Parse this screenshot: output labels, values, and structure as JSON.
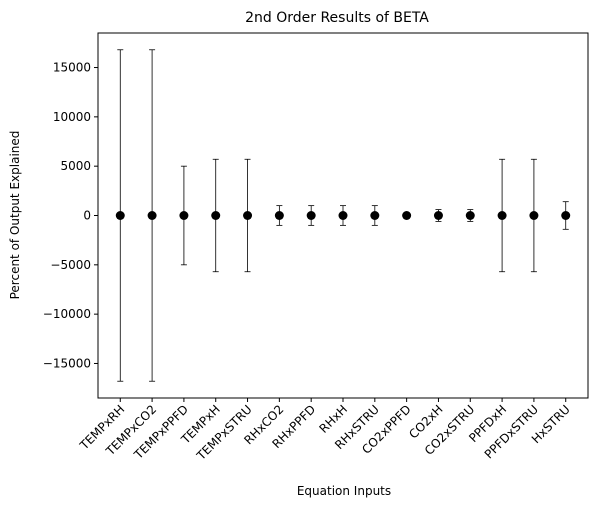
{
  "chart_data": {
    "type": "scatter",
    "title": "2nd Order Results of BETA",
    "xlabel": "Equation Inputs",
    "ylabel": "Percent of Output Explained",
    "ylim": [
      -18500,
      18500
    ],
    "yticks": [
      -15000,
      -10000,
      -5000,
      0,
      5000,
      10000,
      15000
    ],
    "grid": false,
    "categories": [
      "TEMPxRH",
      "TEMPxCO2",
      "TEMPxPPFD",
      "TEMPxH",
      "TEMPxSTRU",
      "RHxCO2",
      "RHxPPFD",
      "RHxH",
      "RHxSTRU",
      "CO2xPPFD",
      "CO2xH",
      "CO2xSTRU",
      "PPFDxH",
      "PPFDxSTRU",
      "HxSTRU"
    ],
    "values": [
      0,
      0,
      0,
      0,
      0,
      0,
      0,
      0,
      0,
      0,
      0,
      0,
      0,
      0,
      0
    ],
    "errors": [
      16800,
      16800,
      5000,
      5700,
      5700,
      1000,
      1000,
      1000,
      1000,
      250,
      600,
      600,
      5700,
      5700,
      1400
    ],
    "marker_color": "#000000"
  }
}
